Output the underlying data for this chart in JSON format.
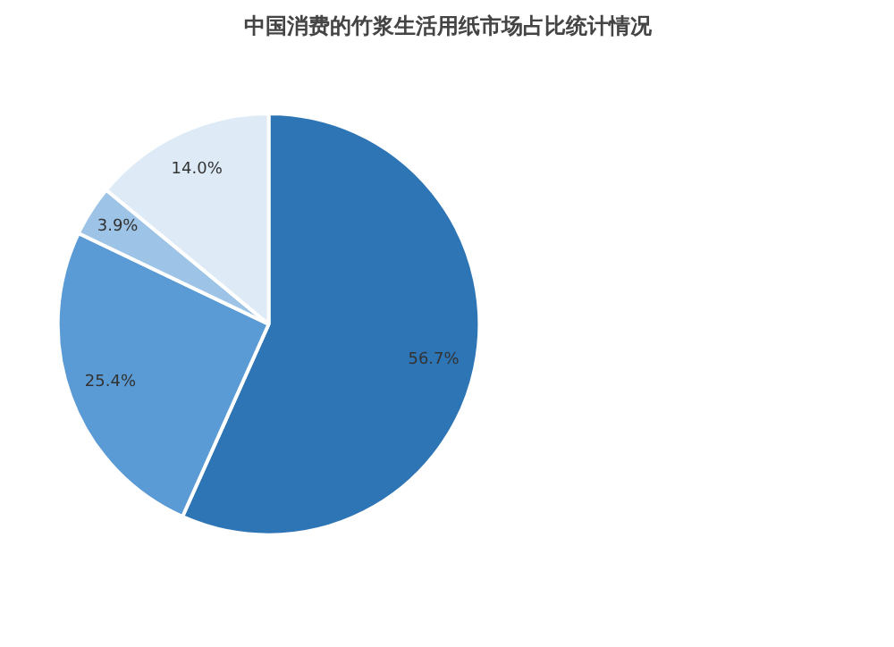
{
  "chart_data": {
    "type": "pie",
    "title": "中国消费的竹浆生活用纸市场占比统计情况",
    "categories": [
      null,
      null,
      null,
      null
    ],
    "values": [
      56.7,
      25.4,
      3.9,
      14.0
    ],
    "colors": [
      "#2e75b6",
      "#5b9bd5",
      "#9dc3e6",
      "#deebf7"
    ],
    "value_labels": [
      "56.7%",
      "25.4%",
      "3.9%",
      "14.0%"
    ]
  }
}
